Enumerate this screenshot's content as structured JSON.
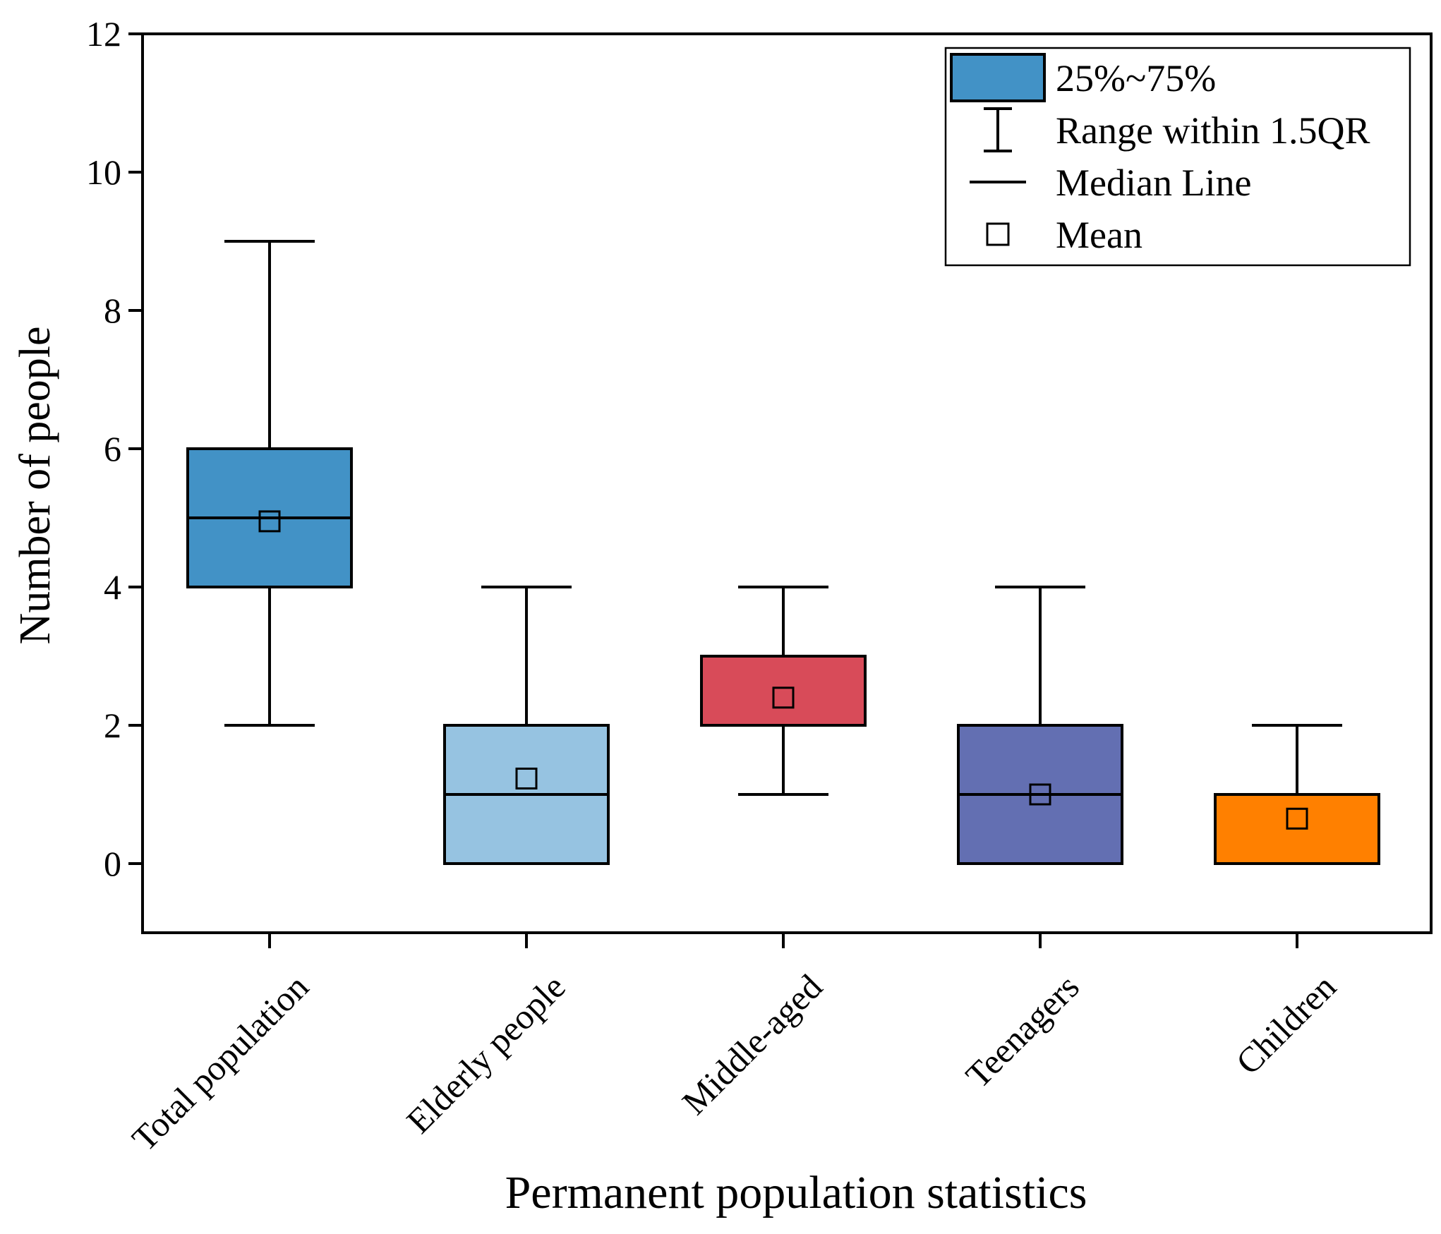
{
  "chart_data": {
    "type": "boxplot",
    "xlabel": "Permanent population statistics",
    "ylabel": "Number of people",
    "ylim": [
      -1,
      12
    ],
    "yticks": [
      0,
      2,
      4,
      6,
      8,
      10,
      12
    ],
    "categories": [
      "Total population",
      "Elderly people",
      "Middle-aged",
      "Teenagers",
      "Children"
    ],
    "boxes": [
      {
        "name": "Total population",
        "whisker_low": 2,
        "q1": 4,
        "median": 5,
        "q3": 6,
        "whisker_high": 9,
        "mean": 4.95,
        "color": "#4292c6"
      },
      {
        "name": "Elderly people",
        "whisker_low": 0,
        "q1": 0,
        "median": 1,
        "q3": 2,
        "whisker_high": 4,
        "mean": 1.23,
        "color": "#96c3e1"
      },
      {
        "name": "Middle-aged",
        "whisker_low": 1,
        "q1": 2,
        "median": 3,
        "q3": 3,
        "whisker_high": 4,
        "mean": 2.4,
        "color": "#d84b59"
      },
      {
        "name": "Teenagers",
        "whisker_low": 0,
        "q1": 0,
        "median": 1,
        "q3": 2,
        "whisker_high": 4,
        "mean": 1.0,
        "color": "#636fb2"
      },
      {
        "name": "Children",
        "whisker_low": 0,
        "q1": 0,
        "median": 1,
        "q3": 1,
        "whisker_high": 2,
        "mean": 0.65,
        "color": "#ff8000"
      }
    ],
    "legend": {
      "position": "top-right",
      "items": [
        {
          "label": "25%~75%",
          "symbol": "box",
          "color": "#4292c6"
        },
        {
          "label": "Range within 1.5QR",
          "symbol": "whisker"
        },
        {
          "label": "Median Line",
          "symbol": "line"
        },
        {
          "label": "Mean",
          "symbol": "square"
        }
      ]
    }
  }
}
